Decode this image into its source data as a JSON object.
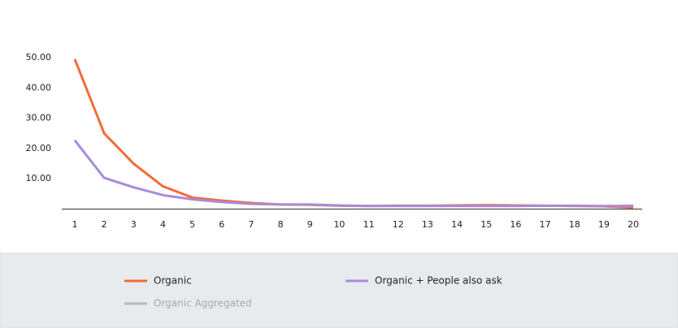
{
  "chart_data": {
    "type": "line",
    "categories": [
      "1",
      "2",
      "3",
      "4",
      "5",
      "6",
      "7",
      "8",
      "9",
      "10",
      "11",
      "12",
      "13",
      "14",
      "15",
      "16",
      "17",
      "18",
      "19",
      "20"
    ],
    "series": [
      {
        "name": "Organic",
        "color": "#f26b3a",
        "values": [
          49.5,
          25.0,
          15.0,
          7.5,
          3.8,
          2.8,
          2.0,
          1.5,
          1.4,
          1.1,
          1.0,
          1.1,
          1.1,
          1.2,
          1.3,
          1.2,
          1.1,
          1.0,
          0.9,
          0.5
        ]
      },
      {
        "name": "Organic + People also ask",
        "color": "#a78bdb",
        "values": [
          22.7,
          10.3,
          7.2,
          4.6,
          3.2,
          2.3,
          1.7,
          1.5,
          1.5,
          1.2,
          1.0,
          1.0,
          1.0,
          1.0,
          1.0,
          1.0,
          1.1,
          1.1,
          1.0,
          1.1
        ]
      },
      {
        "name": "Organic Aggregated",
        "color": "#b5b8bb",
        "hidden": true,
        "values": [
          null,
          null,
          null,
          null,
          null,
          null,
          null,
          null,
          null,
          null,
          null,
          null,
          null,
          null,
          null,
          null,
          null,
          null,
          null,
          null
        ]
      }
    ],
    "ylim": [
      0,
      50
    ],
    "yticks": [
      {
        "value": 10,
        "label": "10.00"
      },
      {
        "value": 20,
        "label": "20.00"
      },
      {
        "value": 30,
        "label": "30.00"
      },
      {
        "value": 40,
        "label": "40.00"
      },
      {
        "value": 50,
        "label": "50.00"
      }
    ],
    "grid": false
  }
}
